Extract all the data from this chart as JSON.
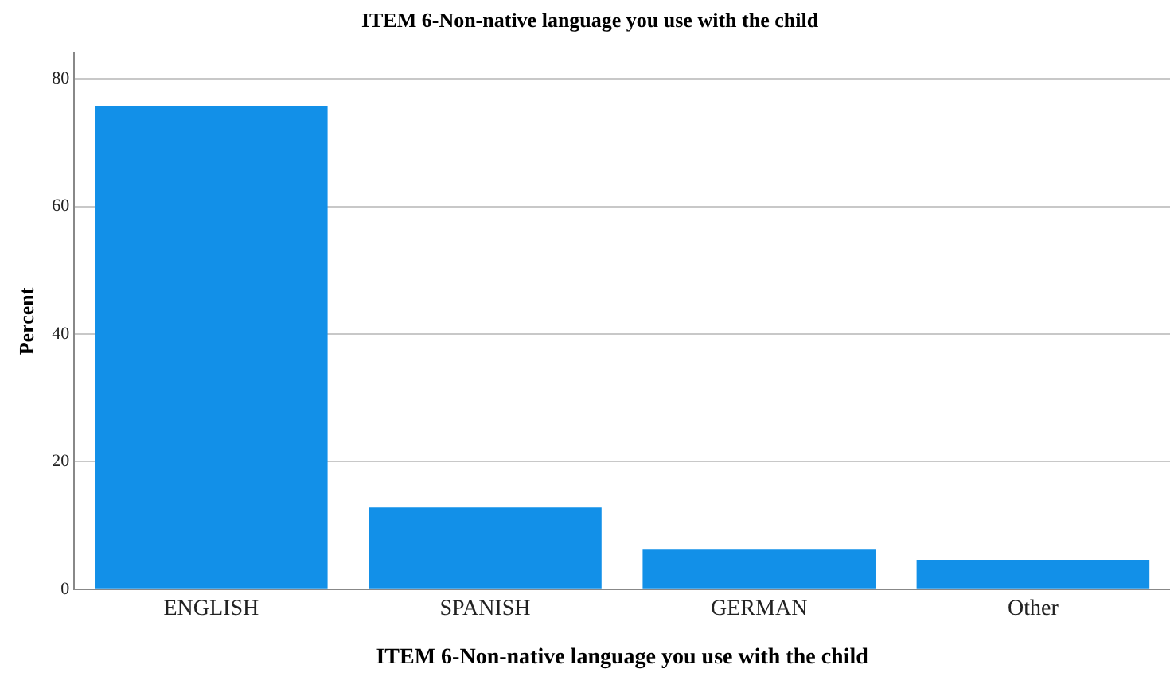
{
  "chart_data": {
    "type": "bar",
    "title": "ITEM 6-Non-native language you use with the child",
    "xlabel": "ITEM 6-Non-native language you use with the child",
    "ylabel": "Percent",
    "categories": [
      "ENGLISH",
      "SPANISH",
      "GERMAN",
      "Other"
    ],
    "values": [
      75.8,
      12.8,
      6.3,
      4.6
    ],
    "color": "#1290e8",
    "ylim": [
      0,
      84
    ],
    "yticks": [
      0,
      20,
      40,
      60,
      80
    ],
    "grid": "y",
    "legend": false
  }
}
